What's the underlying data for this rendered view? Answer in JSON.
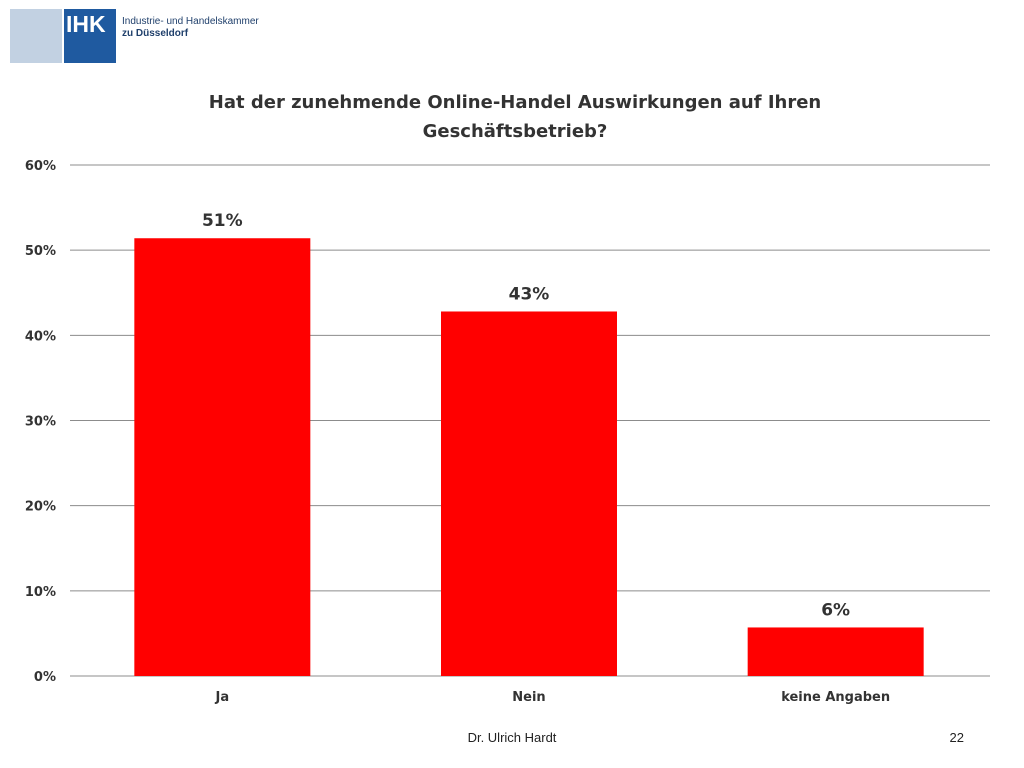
{
  "header": {
    "logo_text": "IHK",
    "org_line1": "Industrie- und Handelskammer",
    "org_line2": "zu Düsseldorf"
  },
  "chart_data": {
    "type": "bar",
    "title_line1": "Hat der zunehmende Online-Handel Auswirkungen auf Ihren",
    "title_line2": "Geschäftsbetrieb?",
    "categories": [
      "Ja",
      "Nein",
      "keine Angaben"
    ],
    "values": [
      51.4,
      42.8,
      5.7
    ],
    "data_labels": [
      "51%",
      "43%",
      "6%"
    ],
    "yticks": [
      "0%",
      "10%",
      "20%",
      "30%",
      "40%",
      "50%",
      "60%"
    ],
    "ylim": [
      0,
      60
    ],
    "xlabel": "",
    "ylabel": "",
    "grid": true,
    "bar_color": "#ff0000",
    "grid_color": "#8c8c8c"
  },
  "footer": {
    "author": "Dr. Ulrich Hardt",
    "page_number": "22"
  }
}
